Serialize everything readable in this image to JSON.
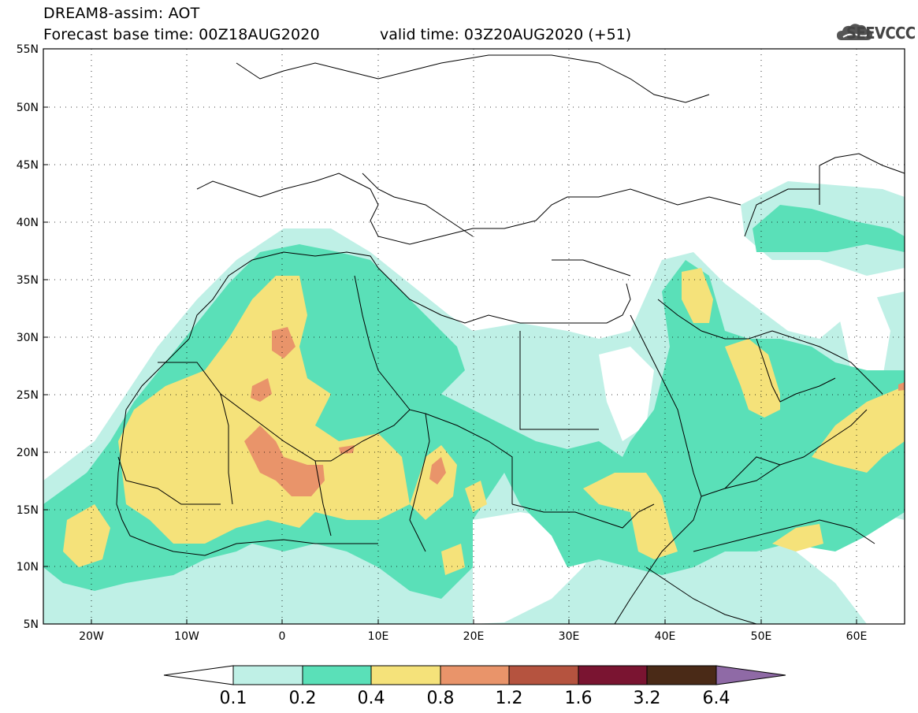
{
  "header": {
    "title": "DREAM8-assim: AOT",
    "forecast": "Forecast base time: 00Z18AUG2020",
    "valid": "valid time: 03Z20AUG2020 (+51)",
    "logo_text": "SEEVCCC"
  },
  "map": {
    "lat_labels": [
      "55N",
      "50N",
      "45N",
      "40N",
      "35N",
      "30N",
      "25N",
      "20N",
      "15N",
      "10N",
      "5N"
    ],
    "lon_labels": [
      "20W",
      "10W",
      "0",
      "10E",
      "20E",
      "30E",
      "40E",
      "50E",
      "60E"
    ]
  },
  "legend": {
    "labels": [
      "0.1",
      "0.2",
      "0.4",
      "0.8",
      "1.2",
      "1.6",
      "3.2",
      "6.4"
    ],
    "colors": [
      "#ffffff",
      "#bff0e6",
      "#5ae0b8",
      "#f5e27a",
      "#e9946a",
      "#b5533f",
      "#7a1431",
      "#4a2a17",
      "#8f6aa6"
    ]
  }
}
